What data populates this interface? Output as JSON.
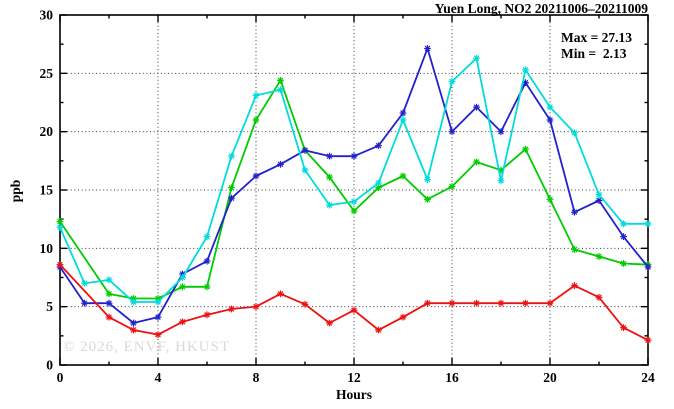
{
  "title": "Yuen Long, NO2 20211006–20211009",
  "annotations": {
    "max_label": "Max = 27.13",
    "min_label": "Min =  2.13"
  },
  "watermark": "© 2026, ENVF, HKUST",
  "chart_data": {
    "type": "line",
    "title": "Yuen Long, NO2 20211006–20211009",
    "xlabel": "Hours",
    "ylabel": "ppb",
    "xlim": [
      0,
      24
    ],
    "ylim": [
      0,
      30
    ],
    "x_major_ticks": [
      0,
      4,
      8,
      12,
      16,
      20,
      24
    ],
    "x_minor_step": 2,
    "y_major_ticks": [
      0,
      5,
      10,
      15,
      20,
      25,
      30
    ],
    "y_minor_step": 2.5,
    "grid": true,
    "legend_position": "none",
    "max_value": 27.13,
    "min_value": 2.13,
    "marker": "asterisk",
    "x": [
      0,
      1,
      2,
      3,
      4,
      5,
      6,
      7,
      8,
      9,
      10,
      11,
      12,
      13,
      14,
      15,
      16,
      17,
      18,
      19,
      20,
      21,
      22,
      23,
      24
    ],
    "series": [
      {
        "name": "green",
        "color": "#00cc00",
        "values": [
          12.3,
          null,
          6.1,
          5.7,
          5.7,
          6.7,
          6.7,
          15.2,
          21.0,
          24.4,
          18.4,
          16.1,
          13.2,
          15.2,
          16.2,
          14.2,
          15.3,
          17.4,
          16.7,
          18.5,
          14.2,
          9.9,
          9.3,
          8.7,
          8.6
        ]
      },
      {
        "name": "blue",
        "color": "#2222cc",
        "values": [
          8.4,
          5.3,
          5.3,
          3.6,
          4.1,
          7.8,
          8.9,
          14.3,
          16.2,
          17.2,
          18.4,
          17.9,
          17.9,
          18.8,
          21.6,
          27.13,
          20.0,
          22.1,
          20.0,
          24.2,
          21.0,
          13.1,
          14.1,
          11.0,
          8.4
        ]
      },
      {
        "name": "cyan",
        "color": "#00dcdc",
        "values": [
          11.8,
          7.0,
          7.3,
          5.4,
          5.4,
          7.5,
          11.0,
          17.9,
          23.1,
          23.6,
          16.7,
          13.7,
          14.0,
          15.6,
          21.0,
          15.9,
          24.3,
          26.3,
          15.8,
          25.3,
          22.1,
          19.9,
          14.6,
          12.1,
          12.1
        ]
      },
      {
        "name": "red",
        "color": "#ee1111",
        "values": [
          8.6,
          null,
          4.1,
          3.0,
          2.6,
          3.7,
          4.3,
          4.8,
          5.0,
          6.1,
          5.2,
          3.6,
          4.7,
          3.0,
          4.1,
          5.3,
          5.3,
          5.3,
          5.3,
          5.3,
          5.3,
          6.8,
          5.8,
          3.2,
          2.13
        ]
      }
    ]
  }
}
